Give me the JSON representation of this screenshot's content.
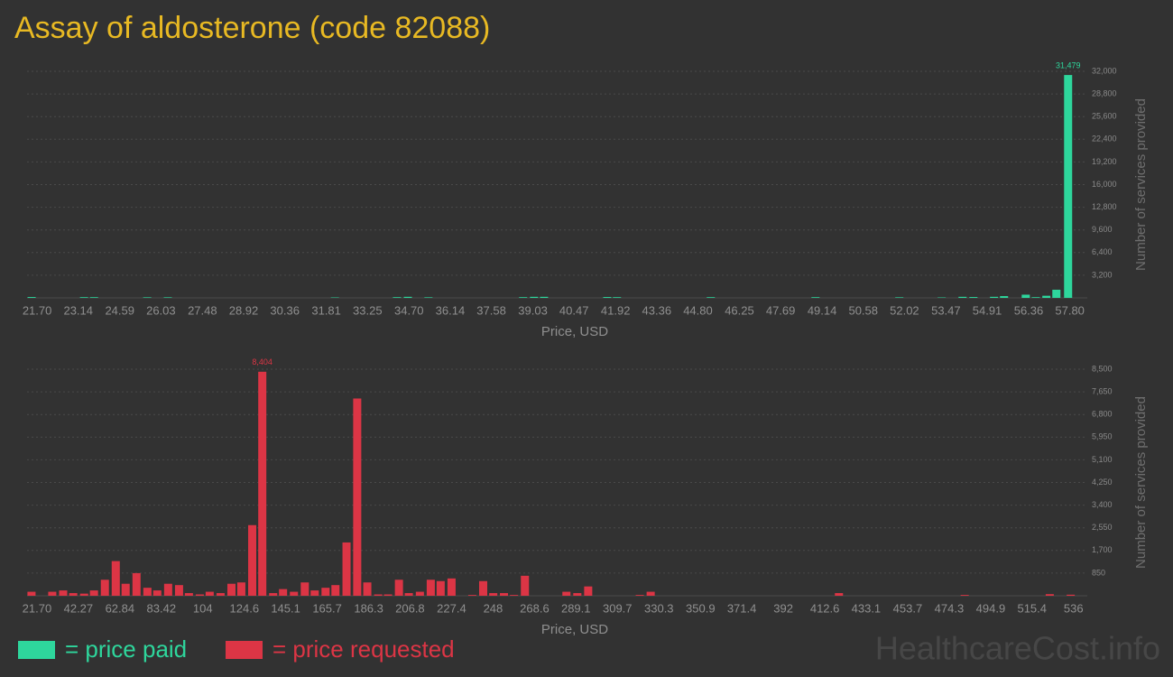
{
  "title": "Assay of aldosterone (code 82088)",
  "watermark": "HealthcareCost.info",
  "chart_data": [
    {
      "type": "bar",
      "xlabel": "Price, USD",
      "ylabel": "Number of services provided",
      "xlim": [
        21.35,
        58.0
      ],
      "ylim": [
        0,
        32000
      ],
      "grid": true,
      "xticks": [
        {
          "value": 21.7,
          "label": "21.70"
        },
        23.14,
        24.59,
        26.03,
        27.48,
        28.92,
        30.36,
        31.81,
        33.25,
        {
          "value": 34.7,
          "label": "34.70"
        },
        36.14,
        37.58,
        39.03,
        40.47,
        41.92,
        43.36,
        {
          "value": 44.8,
          "label": "44.80"
        },
        46.25,
        47.69,
        49.14,
        50.58,
        52.02,
        53.47,
        54.91,
        56.36,
        {
          "value": 57.8,
          "label": "57.80"
        }
      ],
      "yticks": [
        {
          "value": 3200,
          "label": "3,200"
        },
        {
          "value": 6400,
          "label": "6,400"
        },
        {
          "value": 9600,
          "label": "9,600"
        },
        {
          "value": 12800,
          "label": "12,800"
        },
        {
          "value": 16000,
          "label": "16,000"
        },
        {
          "value": 19200,
          "label": "19,200"
        },
        {
          "value": 22400,
          "label": "22,400"
        },
        {
          "value": 25600,
          "label": "25,600"
        },
        {
          "value": 28800,
          "label": "28,800"
        },
        {
          "value": 32000,
          "label": "32,000"
        }
      ],
      "x": [
        21.51,
        23.34,
        23.69,
        25.55,
        26.27,
        32.11,
        34.28,
        34.66,
        35.38,
        38.69,
        39.07,
        39.42,
        41.63,
        41.97,
        45.25,
        48.91,
        51.84,
        53.32,
        54.05,
        54.43,
        55.15,
        55.5,
        56.26,
        56.61,
        56.98,
        57.33,
        57.74
      ],
      "series": [
        {
          "name": "= price paid",
          "color": "#2ed69c",
          "values": [
            120,
            100,
            100,
            80,
            80,
            60,
            100,
            150,
            80,
            100,
            150,
            150,
            120,
            100,
            100,
            100,
            80,
            60,
            150,
            120,
            150,
            250,
            450,
            100,
            300,
            1150,
            31479
          ],
          "value_labels": [
            null,
            null,
            null,
            null,
            null,
            null,
            null,
            null,
            null,
            null,
            null,
            null,
            null,
            null,
            null,
            null,
            null,
            null,
            null,
            null,
            null,
            null,
            null,
            null,
            null,
            null,
            "31,479"
          ]
        }
      ]
    },
    {
      "type": "bar",
      "xlabel": "Price, USD",
      "ylabel": "Number of services provided",
      "xlim": [
        16.8,
        537
      ],
      "ylim": [
        0,
        8500
      ],
      "grid": true,
      "xticks": [
        {
          "value": 21.7,
          "label": "21.70"
        },
        42.27,
        62.84,
        83.42,
        104,
        124.6,
        145.1,
        165.7,
        186.3,
        206.8,
        227.4,
        248,
        268.6,
        289.1,
        309.7,
        330.3,
        350.9,
        371.4,
        392,
        412.6,
        433.1,
        453.7,
        474.3,
        494.9,
        515.4,
        536
      ],
      "yticks": [
        850,
        {
          "value": 1700,
          "label": "1,700"
        },
        {
          "value": 2550,
          "label": "2,550"
        },
        {
          "value": 3400,
          "label": "3,400"
        },
        {
          "value": 4250,
          "label": "4,250"
        },
        {
          "value": 5100,
          "label": "5,100"
        },
        {
          "value": 5950,
          "label": "5,950"
        },
        {
          "value": 6800,
          "label": "6,800"
        },
        {
          "value": 7650,
          "label": "7,650"
        },
        {
          "value": 8500,
          "label": "8,500"
        }
      ],
      "x": [
        19.0,
        29.3,
        34.7,
        39.7,
        45.1,
        50.0,
        55.4,
        60.8,
        65.7,
        71.1,
        76.5,
        81.4,
        86.8,
        92.2,
        97.1,
        102.5,
        107.4,
        112.8,
        118.2,
        123.1,
        128.5,
        133.5,
        138.9,
        143.8,
        149.2,
        154.6,
        159.5,
        164.9,
        169.8,
        175.3,
        180.6,
        185.6,
        191.0,
        195.9,
        201.3,
        206.2,
        211.7,
        217.1,
        222.0,
        227.4,
        237.7,
        243.1,
        248.1,
        253.4,
        258.4,
        263.8,
        284.4,
        289.8,
        295.2,
        320.8,
        326.2,
        419.6,
        482.0,
        524.2,
        534.6
      ],
      "series": [
        {
          "name": "= price requested",
          "color": "#dc3545",
          "values": [
            150,
            150,
            200,
            100,
            80,
            200,
            600,
            1300,
            450,
            850,
            300,
            200,
            450,
            400,
            100,
            50,
            150,
            100,
            450,
            500,
            2650,
            8404,
            100,
            250,
            150,
            500,
            200,
            300,
            400,
            2000,
            7400,
            500,
            50,
            50,
            600,
            100,
            150,
            600,
            550,
            650,
            30,
            550,
            100,
            100,
            30,
            750,
            150,
            100,
            350,
            30,
            150,
            100,
            30,
            60,
            40
          ],
          "value_labels": [
            null,
            null,
            null,
            null,
            null,
            null,
            null,
            null,
            null,
            null,
            null,
            null,
            null,
            null,
            null,
            null,
            null,
            null,
            null,
            null,
            null,
            "8,404",
            null,
            null,
            null,
            null,
            null,
            null,
            null,
            null,
            null,
            null,
            null,
            null,
            null,
            null,
            null,
            null,
            null,
            null,
            null,
            null,
            null,
            null,
            null,
            null,
            null,
            null,
            null,
            null,
            null,
            null,
            null,
            null,
            null
          ]
        }
      ]
    }
  ]
}
